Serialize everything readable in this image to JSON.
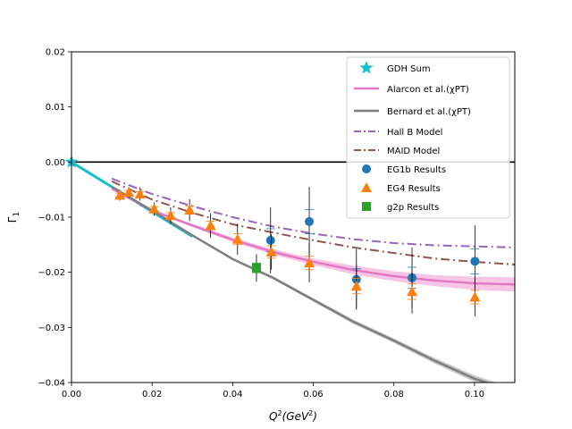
{
  "chart_data": {
    "type": "scatter",
    "title": "",
    "xlabel_main": "Q",
    "xlabel_sup": "2",
    "xlabel_unit": "(GeV",
    "xlabel_unit_sup": "2",
    "xlabel_close": ")",
    "ylabel_main": "Γ",
    "ylabel_sub": "1",
    "xlim": [
      0.0,
      0.11
    ],
    "ylim": [
      -0.04,
      0.02
    ],
    "x_ticks": [
      0.0,
      0.02,
      0.04,
      0.06,
      0.08,
      0.1
    ],
    "x_tick_labels": [
      "0.00",
      "0.02",
      "0.04",
      "0.06",
      "0.08",
      "0.10"
    ],
    "y_ticks": [
      0.02,
      0.01,
      0.0,
      -0.01,
      -0.02,
      -0.03,
      -0.04
    ],
    "y_tick_labels": [
      "0.02",
      "0.01",
      "0.00",
      "−0.01",
      "−0.02",
      "−0.03",
      "−0.04"
    ],
    "zero_line": 0.0,
    "grid": false,
    "legend_position": "top-right",
    "legend": [
      {
        "label": "GDH Sum",
        "style": "star",
        "color": "#17becf"
      },
      {
        "label": "Alarcon et al.(χPT)",
        "style": "line",
        "color": "#e377c2"
      },
      {
        "label": "Bernard et al.(χPT)",
        "style": "line",
        "color": "#7f7f7f"
      },
      {
        "label": "Hall B Model",
        "style": "dashdot",
        "color": "#9467bd"
      },
      {
        "label": "MAID Model",
        "style": "dashdot",
        "color": "#8c564b"
      },
      {
        "label": "EG1b Results",
        "style": "circle",
        "color": "#1f77b4"
      },
      {
        "label": "EG4 Results",
        "style": "triangle",
        "color": "#ff7f0e"
      },
      {
        "label": "g2p Results",
        "style": "square",
        "color": "#2ca02c"
      }
    ],
    "series": [
      {
        "name": "GDH Sum",
        "kind": "line",
        "color": "#17becf",
        "width": 3,
        "x": [
          0.0,
          0.03
        ],
        "y": [
          0.0,
          -0.0135
        ],
        "marker": {
          "x": 0.0,
          "y": 0.0,
          "shape": "star"
        }
      },
      {
        "name": "Alarcon et al.(χPT)",
        "kind": "line",
        "color": "#e377c2",
        "width": 2.5,
        "band_color": "#f4b6de",
        "x": [
          0.01,
          0.02,
          0.03,
          0.04,
          0.05,
          0.06,
          0.07,
          0.08,
          0.09,
          0.1,
          0.11
        ],
        "y": [
          -0.0048,
          -0.0088,
          -0.0115,
          -0.0141,
          -0.0163,
          -0.0181,
          -0.0196,
          -0.0207,
          -0.0215,
          -0.022,
          -0.0222
        ],
        "band": [
          0.0001,
          0.0002,
          0.0003,
          0.0004,
          0.0005,
          0.0006,
          0.0008,
          0.0009,
          0.001,
          0.0012,
          0.0013
        ]
      },
      {
        "name": "Bernard et al.(χPT)",
        "kind": "line",
        "color": "#7f7f7f",
        "width": 2.5,
        "band_color": "#bdbdbd",
        "x": [
          0.01,
          0.02,
          0.03,
          0.04,
          0.05,
          0.06,
          0.07,
          0.08,
          0.09,
          0.1,
          0.105
        ],
        "y": [
          -0.0045,
          -0.0088,
          -0.0133,
          -0.0176,
          -0.021,
          -0.025,
          -0.029,
          -0.0324,
          -0.036,
          -0.0393,
          -0.0405
        ],
        "band": [
          0.0001,
          0.0001,
          0.0002,
          0.0002,
          0.0003,
          0.0003,
          0.0004,
          0.0004,
          0.0005,
          0.0006,
          0.0006
        ]
      },
      {
        "name": "Hall B Model",
        "kind": "dashdot",
        "color": "#9467bd",
        "width": 2,
        "x": [
          0.01,
          0.02,
          0.03,
          0.04,
          0.05,
          0.06,
          0.07,
          0.08,
          0.09,
          0.1,
          0.11
        ],
        "y": [
          -0.003,
          -0.0058,
          -0.008,
          -0.01,
          -0.0117,
          -0.013,
          -0.014,
          -0.0147,
          -0.0151,
          -0.0153,
          -0.0155
        ]
      },
      {
        "name": "MAID Model",
        "kind": "dashdot",
        "color": "#8c564b",
        "width": 2,
        "x": [
          0.01,
          0.02,
          0.03,
          0.04,
          0.05,
          0.06,
          0.07,
          0.08,
          0.09,
          0.1,
          0.11
        ],
        "y": [
          -0.0035,
          -0.0068,
          -0.0092,
          -0.0113,
          -0.0128,
          -0.0142,
          -0.0155,
          -0.0165,
          -0.0175,
          -0.0181,
          -0.0186
        ]
      },
      {
        "name": "EG1b Results",
        "kind": "points",
        "shape": "circle",
        "color": "#1f77b4",
        "points": [
          {
            "x": 0.0494,
            "y": -0.0142,
            "err": 0.006
          },
          {
            "x": 0.059,
            "y": -0.0108,
            "err": 0.0063
          },
          {
            "x": 0.0707,
            "y": -0.0213,
            "err": 0.0055
          },
          {
            "x": 0.0845,
            "y": -0.021,
            "err": 0.0055
          },
          {
            "x": 0.1001,
            "y": -0.018,
            "err": 0.0065
          }
        ]
      },
      {
        "name": "EG4 Results",
        "kind": "points",
        "shape": "triangle",
        "color": "#ff7f0e",
        "points": [
          {
            "x": 0.012,
            "y": -0.006,
            "err": 0.001
          },
          {
            "x": 0.0142,
            "y": -0.0055,
            "err": 0.001
          },
          {
            "x": 0.017,
            "y": -0.0058,
            "err": 0.0012
          },
          {
            "x": 0.0205,
            "y": -0.0085,
            "err": 0.0012
          },
          {
            "x": 0.0246,
            "y": -0.0097,
            "err": 0.0015
          },
          {
            "x": 0.0293,
            "y": -0.0087,
            "err": 0.002
          },
          {
            "x": 0.0345,
            "y": -0.0115,
            "err": 0.0022
          },
          {
            "x": 0.0412,
            "y": -0.014,
            "err": 0.0028
          },
          {
            "x": 0.0496,
            "y": -0.0163,
            "err": 0.0032
          },
          {
            "x": 0.059,
            "y": -0.0183,
            "err": 0.0035
          },
          {
            "x": 0.0707,
            "y": -0.0225,
            "err": 0.004
          },
          {
            "x": 0.0845,
            "y": -0.0235,
            "err": 0.004
          },
          {
            "x": 0.1001,
            "y": -0.0245,
            "err": 0.0035
          }
        ]
      },
      {
        "name": "g2p Results",
        "kind": "points",
        "shape": "square",
        "color": "#2ca02c",
        "points": [
          {
            "x": 0.0459,
            "y": -0.0192,
            "err": 0.0025
          }
        ]
      }
    ]
  }
}
